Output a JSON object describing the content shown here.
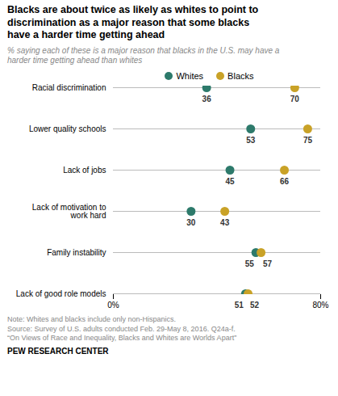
{
  "chart_data": {
    "type": "dot",
    "orientation": "horizontal",
    "title": "Blacks are about twice as likely as whites to point to\ndiscrimination as a major reason that some blacks\nhave a harder time getting ahead",
    "subtitle": "% saying each of these is a major reason that blacks in the U.S. may have a\nharder time getting ahead than whites",
    "note": "Note: Whites and blacks include only non-Hispanics.\nSource: Survey of U.S. adults conducted Feb. 29-May 8, 2016. Q24a-f.\n“On Views of Race and Inequality, Blacks and Whites are Worlds Apart”",
    "footer": "PEW RESEARCH CENTER",
    "categories": [
      "Racial discrimination",
      "Lower quality schools",
      "Lack of jobs",
      "Lack of motivation to\nwork hard",
      "Family instability",
      "Lack of good role models"
    ],
    "series": [
      {
        "name": "Whites",
        "color": "#2d7a6b",
        "values": [
          36,
          53,
          45,
          30,
          55,
          51
        ]
      },
      {
        "name": "Blacks",
        "color": "#c9a227",
        "values": [
          70,
          75,
          66,
          43,
          57,
          52
        ]
      }
    ],
    "xlim": [
      0,
      80
    ],
    "xticks": [
      {
        "value": 0,
        "label": "0%"
      },
      {
        "value": 80,
        "label": "80%"
      }
    ],
    "data_labels": true,
    "legend": "top",
    "grid": false
  }
}
